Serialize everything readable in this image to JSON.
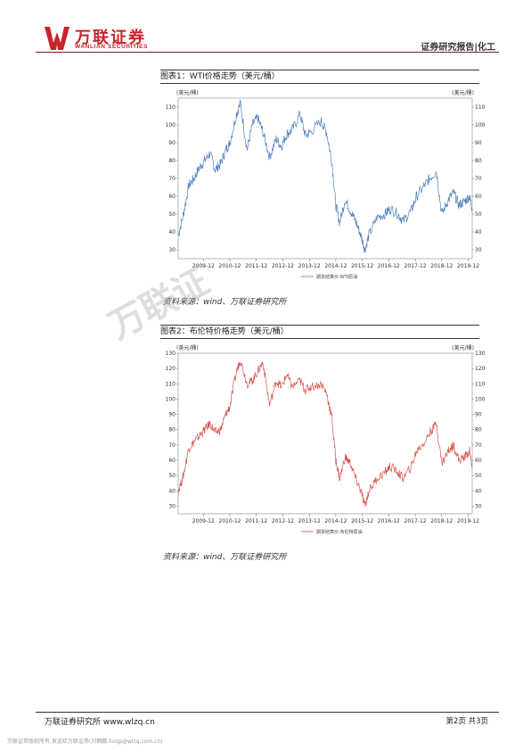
{
  "header": {
    "logo_text": "万联证券",
    "logo_sub": "WANLIAN SECURITIES",
    "report_type": "证券研究报告|化工"
  },
  "watermark": "万联证",
  "charts": [
    {
      "caption": "图表1：WTI价格走势（美元/桶）",
      "source": "资料来源：wind、万联证券研究所"
    },
    {
      "caption": "图表2：布伦特价格走势（美元/桶）",
      "source": "资料来源：wind、万联证券研究所"
    }
  ],
  "chart_data": [
    {
      "type": "line",
      "unit_left": "美元/桶",
      "unit_right": "美元/桶",
      "ylim": [
        25,
        115
      ],
      "yticks": [
        30,
        40,
        50,
        60,
        70,
        80,
        90,
        100,
        110
      ],
      "xticks": [
        "2009-12",
        "2010-12",
        "2011-12",
        "2012-12",
        "2013-12",
        "2014-12",
        "2015-12",
        "2016-12",
        "2017-12",
        "2018-12",
        "2019-12"
      ],
      "xrange": [
        2009.0,
        2020.1
      ],
      "legend": "期货结算价:WTI原油",
      "color": "#4f81bd",
      "series": [
        {
          "x": [
            2009.0,
            2009.2,
            2009.4,
            2009.6,
            2009.8,
            2010.0,
            2010.2,
            2010.4,
            2010.6,
            2010.8,
            2010.95,
            2011.2,
            2011.35,
            2011.6,
            2011.8,
            2012.0,
            2012.2,
            2012.45,
            2012.7,
            2012.9,
            2013.1,
            2013.3,
            2013.6,
            2013.8,
            2014.0,
            2014.4,
            2014.6,
            2014.8,
            2014.95,
            2015.1,
            2015.3,
            2015.5,
            2015.7,
            2015.9,
            2016.05,
            2016.2,
            2016.5,
            2016.8,
            2017.0,
            2017.3,
            2017.5,
            2017.8,
            2018.0,
            2018.3,
            2018.5,
            2018.75,
            2018.95,
            2019.2,
            2019.4,
            2019.6,
            2019.8,
            2020.0,
            2020.1
          ],
          "y": [
            38,
            50,
            66,
            70,
            76,
            80,
            84,
            75,
            78,
            86,
            90,
            106,
            112,
            86,
            100,
            104,
            96,
            82,
            92,
            88,
            95,
            97,
            106,
            94,
            96,
            102,
            96,
            80,
            55,
            45,
            58,
            52,
            46,
            38,
            30,
            38,
            48,
            50,
            53,
            50,
            46,
            52,
            60,
            66,
            70,
            74,
            50,
            58,
            62,
            55,
            57,
            60,
            53
          ]
        }
      ]
    },
    {
      "type": "line",
      "unit_left": "美元/桶",
      "unit_right": "美元/桶",
      "ylim": [
        25,
        130
      ],
      "yticks": [
        30,
        40,
        50,
        60,
        70,
        80,
        90,
        100,
        110,
        120,
        130
      ],
      "xticks": [
        "2009-12",
        "2010-12",
        "2011-12",
        "2012-12",
        "2013-12",
        "2014-12",
        "2015-12",
        "2016-12",
        "2017-12",
        "2018-12",
        "2019-12"
      ],
      "xrange": [
        2009.0,
        2020.1
      ],
      "legend": "期货结算价:布伦特原油",
      "color": "#d9534f",
      "series": [
        {
          "x": [
            2009.0,
            2009.2,
            2009.4,
            2009.6,
            2009.8,
            2010.0,
            2010.2,
            2010.4,
            2010.6,
            2010.8,
            2010.95,
            2011.2,
            2011.35,
            2011.6,
            2011.8,
            2012.0,
            2012.2,
            2012.45,
            2012.7,
            2012.9,
            2013.1,
            2013.3,
            2013.6,
            2013.8,
            2014.0,
            2014.4,
            2014.6,
            2014.8,
            2014.95,
            2015.1,
            2015.3,
            2015.5,
            2015.7,
            2015.9,
            2016.05,
            2016.2,
            2016.5,
            2016.8,
            2017.0,
            2017.3,
            2017.5,
            2017.8,
            2018.0,
            2018.3,
            2018.5,
            2018.75,
            2018.95,
            2019.2,
            2019.4,
            2019.6,
            2019.8,
            2020.0,
            2020.1
          ],
          "y": [
            40,
            50,
            68,
            72,
            76,
            80,
            84,
            78,
            80,
            90,
            95,
            118,
            126,
            110,
            112,
            118,
            124,
            96,
            112,
            108,
            116,
            108,
            112,
            106,
            108,
            110,
            104,
            88,
            60,
            48,
            62,
            58,
            48,
            40,
            30,
            40,
            48,
            52,
            56,
            52,
            48,
            56,
            66,
            72,
            78,
            84,
            58,
            66,
            70,
            60,
            62,
            66,
            56
          ]
        }
      ]
    }
  ],
  "footer": {
    "left": "万联证券研究所 www.wlzq.cn",
    "right": "第2页 共3页",
    "note": "万联证券版权所有,发送给万联证券(刘栖鹏:liuqp@wlzq.com.cn)"
  }
}
